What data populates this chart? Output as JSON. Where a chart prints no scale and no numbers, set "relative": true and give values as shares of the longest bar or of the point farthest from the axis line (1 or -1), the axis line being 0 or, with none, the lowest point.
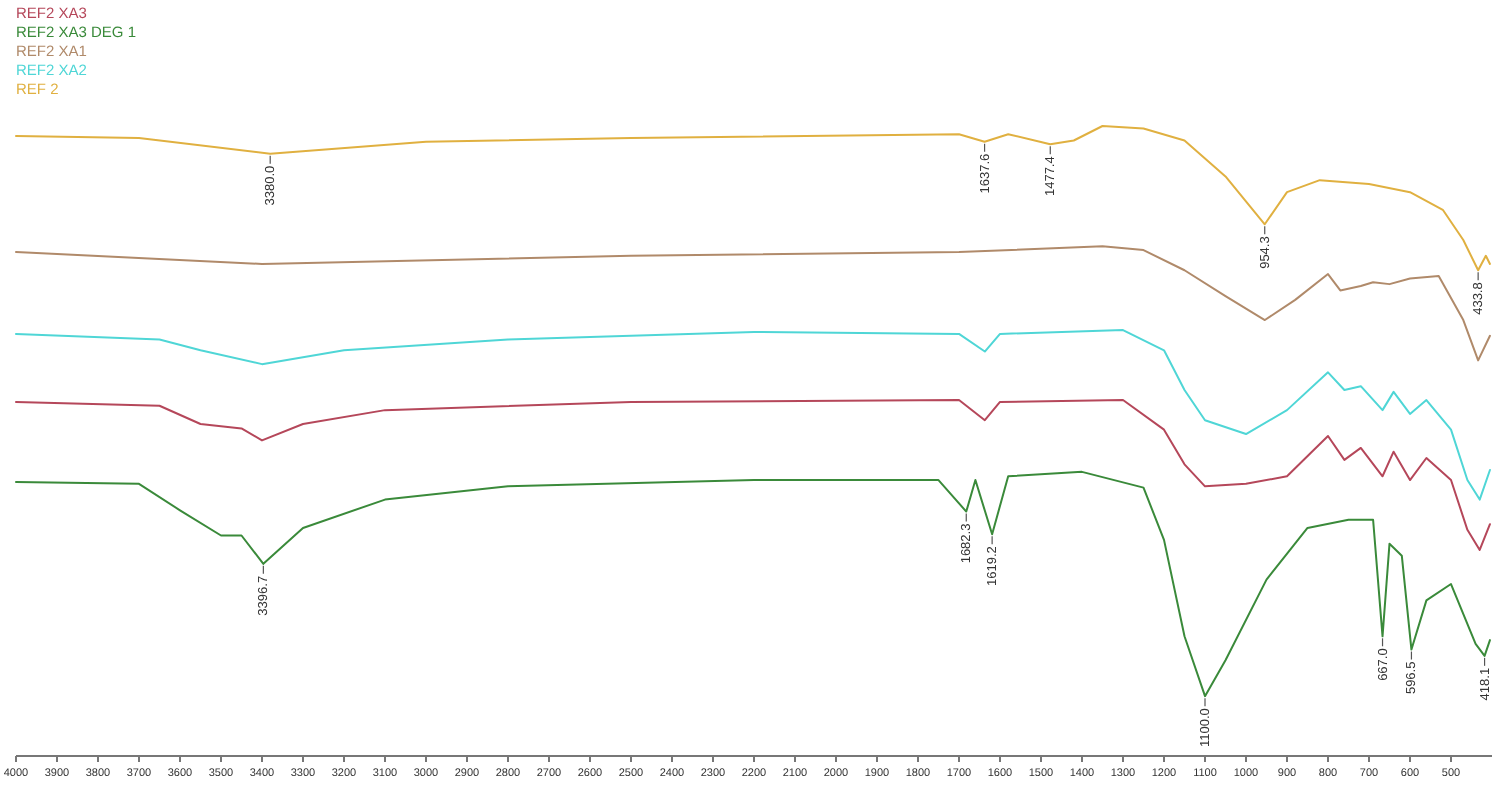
{
  "chart_data": {
    "type": "line",
    "relative": true,
    "legend": "top left",
    "grid": false,
    "xlim": [
      4000,
      400
    ],
    "xticks": [
      4000,
      3900,
      3800,
      3700,
      3600,
      3500,
      3400,
      3300,
      3200,
      3100,
      3000,
      2900,
      2800,
      2700,
      2600,
      2500,
      2400,
      2300,
      2200,
      2100,
      2000,
      1900,
      1800,
      1700,
      1600,
      1500,
      1400,
      1300,
      1200,
      1100,
      1000,
      900,
      800,
      700,
      600,
      500
    ],
    "series": [
      {
        "name": "REF2 XA3",
        "color": "#b5475a",
        "x": [
          4000,
          3650,
          3550,
          3450,
          3400,
          3300,
          3100,
          2500,
          1700,
          1637,
          1600,
          1300,
          1200,
          1150,
          1100,
          1000,
          900,
          800,
          760,
          720,
          667,
          640,
          600,
          560,
          500,
          460,
          430,
          405
        ],
        "values": [
          0.562,
          0.556,
          0.527,
          0.52,
          0.501,
          0.527,
          0.549,
          0.562,
          0.565,
          0.533,
          0.562,
          0.565,
          0.518,
          0.463,
          0.428,
          0.432,
          0.444,
          0.508,
          0.47,
          0.489,
          0.444,
          0.483,
          0.438,
          0.473,
          0.438,
          0.359,
          0.327,
          0.368
        ]
      },
      {
        "name": "REF2 XA3 DEG 1",
        "color": "#3a8a3a",
        "x": [
          4000,
          3700,
          3600,
          3500,
          3450,
          3396.7,
          3300,
          3100,
          2800,
          2200,
          1750,
          1682.3,
          1660,
          1619.2,
          1580,
          1400,
          1250,
          1200,
          1150,
          1100,
          1050,
          950,
          850,
          750,
          690,
          667,
          650,
          620,
          596.5,
          560,
          500,
          440,
          418.1,
          405
        ],
        "values": [
          0.435,
          0.432,
          0.39,
          0.35,
          0.35,
          0.305,
          0.362,
          0.407,
          0.428,
          0.438,
          0.438,
          0.388,
          0.438,
          0.352,
          0.444,
          0.451,
          0.426,
          0.343,
          0.19,
          0.095,
          0.152,
          0.28,
          0.362,
          0.375,
          0.375,
          0.19,
          0.337,
          0.318,
          0.169,
          0.247,
          0.273,
          0.178,
          0.159,
          0.184
        ]
      },
      {
        "name": "REF2 XA1",
        "color": "#b08a6a",
        "x": [
          4000,
          3400,
          2500,
          1700,
          1350,
          1250,
          1150,
          1050,
          954,
          880,
          800,
          770,
          720,
          690,
          650,
          600,
          530,
          470,
          433.8,
          405
        ],
        "values": [
          0.8,
          0.781,
          0.794,
          0.8,
          0.809,
          0.803,
          0.771,
          0.73,
          0.692,
          0.724,
          0.765,
          0.739,
          0.746,
          0.752,
          0.749,
          0.758,
          0.762,
          0.692,
          0.628,
          0.667
        ]
      },
      {
        "name": "REF2 XA2",
        "color": "#4fd6d6",
        "x": [
          4000,
          3650,
          3550,
          3400,
          3200,
          2800,
          2200,
          1700,
          1637,
          1600,
          1300,
          1200,
          1150,
          1100,
          1000,
          900,
          800,
          760,
          720,
          667,
          640,
          600,
          560,
          500,
          460,
          430,
          405
        ],
        "values": [
          0.67,
          0.661,
          0.644,
          0.622,
          0.644,
          0.661,
          0.673,
          0.67,
          0.642,
          0.67,
          0.676,
          0.644,
          0.581,
          0.533,
          0.511,
          0.549,
          0.609,
          0.581,
          0.587,
          0.549,
          0.578,
          0.543,
          0.565,
          0.518,
          0.438,
          0.407,
          0.454
        ]
      },
      {
        "name": "REF 2",
        "color": "#e0b040",
        "x": [
          4000,
          3700,
          3380,
          3000,
          2500,
          1700,
          1637.6,
          1580,
          1477.4,
          1420,
          1350,
          1250,
          1150,
          1050,
          954.3,
          900,
          820,
          700,
          600,
          520,
          470,
          433.8,
          415,
          405
        ],
        "values": [
          0.984,
          0.981,
          0.956,
          0.975,
          0.981,
          0.987,
          0.975,
          0.987,
          0.971,
          0.977,
          1,
          0.996,
          0.977,
          0.92,
          0.844,
          0.895,
          0.914,
          0.908,
          0.895,
          0.867,
          0.819,
          0.771,
          0.794,
          0.781
        ]
      }
    ],
    "annotations": [
      {
        "text": "3380.0",
        "x": 3380,
        "y": 0.956
      },
      {
        "text": "1637.6",
        "x": 1637.6,
        "y": 0.975
      },
      {
        "text": "1477.4",
        "x": 1477.4,
        "y": 0.971
      },
      {
        "text": "954.3",
        "x": 954.3,
        "y": 0.844
      },
      {
        "text": "433.8",
        "x": 433.8,
        "y": 0.771
      },
      {
        "text": "3396.7",
        "x": 3396.7,
        "y": 0.305
      },
      {
        "text": "1682.3",
        "x": 1682.3,
        "y": 0.388
      },
      {
        "text": "1619.2",
        "x": 1619.2,
        "y": 0.352
      },
      {
        "text": "1100.0",
        "x": 1100,
        "y": 0.095
      },
      {
        "text": "667.0",
        "x": 667,
        "y": 0.19
      },
      {
        "text": "596.5",
        "x": 596.5,
        "y": 0.169
      },
      {
        "text": "418.1",
        "x": 418.1,
        "y": 0.159
      }
    ]
  }
}
